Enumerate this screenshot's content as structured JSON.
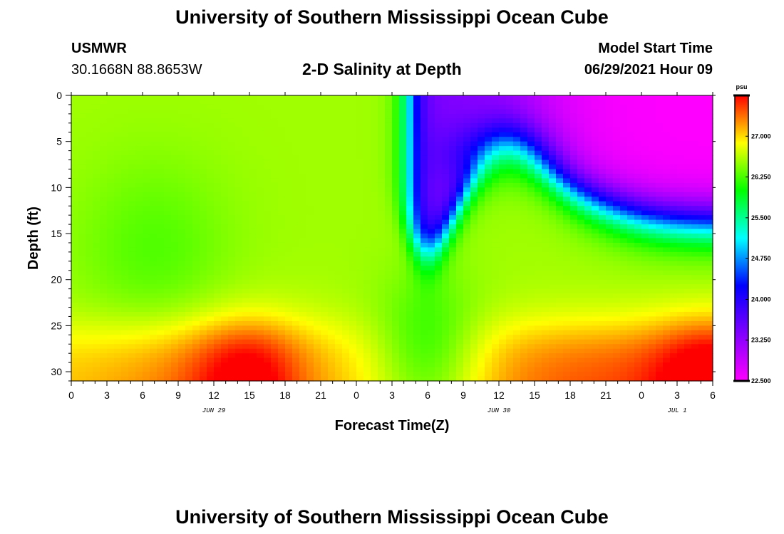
{
  "header": {
    "title": "University of Southern Mississippi Ocean Cube",
    "station": "USMWR",
    "coords": "30.1668N  88.8653W",
    "subtitle": "2-D Salinity at Depth",
    "model_start_label": "Model Start Time",
    "model_start_value": "06/29/2021 Hour 09"
  },
  "footer": {
    "title": "University of Southern Mississippi Ocean Cube"
  },
  "chart_data": {
    "type": "heatmap",
    "title": "2-D Salinity at Depth",
    "xlabel": "Forecast Time(Z)",
    "ylabel": "Depth (ft)",
    "x_ticks": [
      "0",
      "3",
      "6",
      "9",
      "12",
      "15",
      "18",
      "21",
      "0",
      "3",
      "6",
      "9",
      "12",
      "15",
      "18",
      "21",
      "0",
      "3",
      "6"
    ],
    "x_hours_range": [
      0,
      54
    ],
    "date_labels": [
      {
        "label": "JUN 29",
        "hour": 12
      },
      {
        "label": "JUN 30",
        "hour": 36
      },
      {
        "label": "JUL 1",
        "hour": 51
      }
    ],
    "y_ticks": [
      0,
      5,
      10,
      15,
      20,
      25,
      30
    ],
    "ylim": [
      0,
      31
    ],
    "colorbar": {
      "units": "psu",
      "range": [
        22.5,
        27.75
      ],
      "ticks": [
        "22.500",
        "23.250",
        "24.000",
        "24.750",
        "25.500",
        "26.250",
        "27.000"
      ],
      "colors": [
        "#ff00ff",
        "#8000ff",
        "#0000ff",
        "#00ffff",
        "#00ff00",
        "#ffff00",
        "#ff0000"
      ]
    },
    "features": [
      {
        "region": "surface fresh layer",
        "hours": [
          28,
          54
        ],
        "depth_ft": [
          0,
          12
        ],
        "salinity_psu": 23.0
      },
      {
        "region": "bottom saline layer",
        "hours": [
          0,
          54
        ],
        "depth_ft": [
          25,
          31
        ],
        "salinity_psu": 27.4
      },
      {
        "region": "mid column",
        "hours": [
          0,
          54
        ],
        "depth_ft": [
          12,
          25
        ],
        "salinity_psu": 26.4
      }
    ]
  }
}
